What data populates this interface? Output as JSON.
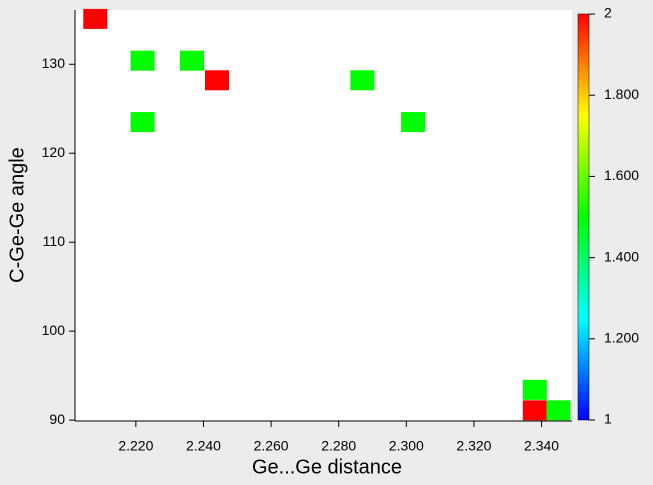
{
  "chart_data": {
    "type": "scatter",
    "xlabel": "Ge...Ge distance",
    "ylabel": "C-Ge-Ge angle",
    "x": [
      2.208,
      2.222,
      2.2366,
      2.244,
      2.287,
      2.222,
      2.302,
      2.338,
      2.338,
      2.345
    ],
    "y": [
      135.1,
      130.4,
      130.4,
      128.2,
      128.2,
      123.5,
      123.5,
      93.4,
      91.1,
      91.1
    ],
    "values": [
      2,
      1.5,
      1.5,
      2,
      1.5,
      1.5,
      1.5,
      1.5,
      2,
      1.5
    ],
    "xlim": [
      2.202,
      2.349
    ],
    "xticks": [
      {
        "value": 2.22,
        "label": "2.220"
      },
      {
        "value": 2.24,
        "label": "2.240"
      },
      {
        "value": 2.26,
        "label": "2.260"
      },
      {
        "value": 2.28,
        "label": "2.280"
      },
      {
        "value": 2.3,
        "label": "2.300"
      },
      {
        "value": 2.32,
        "label": "2.320"
      },
      {
        "value": 2.34,
        "label": "2.340"
      }
    ],
    "ylim": [
      89.9,
      136.1
    ],
    "yticks": [
      90,
      100,
      110,
      120,
      130
    ],
    "colorbar": {
      "lim": [
        1,
        2
      ],
      "ticks": [
        1,
        {
          "value": 1.2,
          "label": "1.200"
        },
        {
          "value": 1.4,
          "label": "1.400"
        },
        {
          "value": 1.6,
          "label": "1.600"
        },
        {
          "value": 1.8,
          "label": "1.800"
        },
        2
      ],
      "colors": [
        "#0000ff",
        "#00ffff",
        "#00ff00",
        "#ffff00",
        "#ff0000"
      ]
    }
  }
}
